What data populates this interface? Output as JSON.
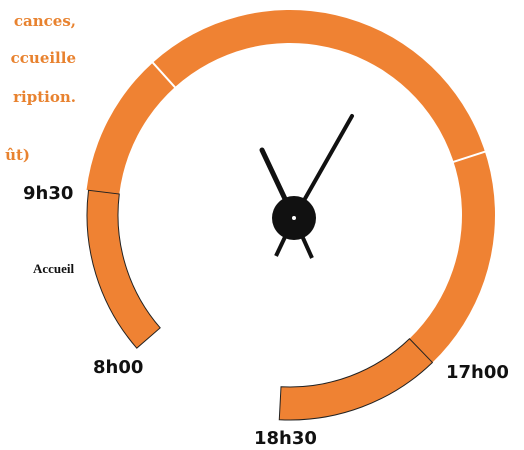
{
  "side_text": [
    "cances,",
    "ccueille",
    "ription.",
    "ût)"
  ],
  "labels": {
    "start": "9h30",
    "segment": "Accueil",
    "segment_end": "8h00",
    "afternoon": "17h00",
    "end": "18h30"
  }
}
